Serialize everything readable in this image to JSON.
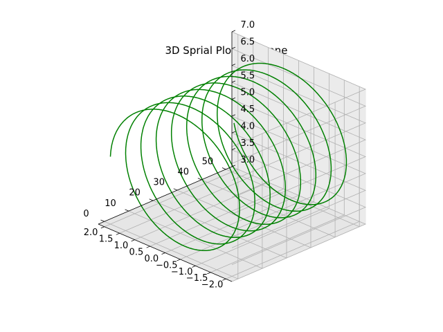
{
  "chart_data": {
    "type": "line3d",
    "title": "3D Sprial Plot for Drone",
    "x_ticks": [
      "−2.0",
      "−1.5",
      "−1.0",
      "−0.5",
      "0.0",
      "0.5",
      "1.0",
      "1.5",
      "2.0"
    ],
    "y_ticks": [
      "0",
      "10",
      "20",
      "30",
      "40",
      "50"
    ],
    "z_ticks": [
      "3.0",
      "3.5",
      "4.0",
      "4.5",
      "5.0",
      "5.5",
      "6.0",
      "6.5",
      "7.0"
    ],
    "xlim": [
      -2.2,
      2.2
    ],
    "ylim": [
      -2.5,
      52.5
    ],
    "zlim": [
      3.0,
      7.0
    ],
    "grid": true,
    "series": [
      {
        "color": "#008000",
        "x": "2*cos(t)",
        "y": "t",
        "z": "5+2*sin(t)",
        "t_range": [
          0,
          50
        ]
      }
    ]
  }
}
